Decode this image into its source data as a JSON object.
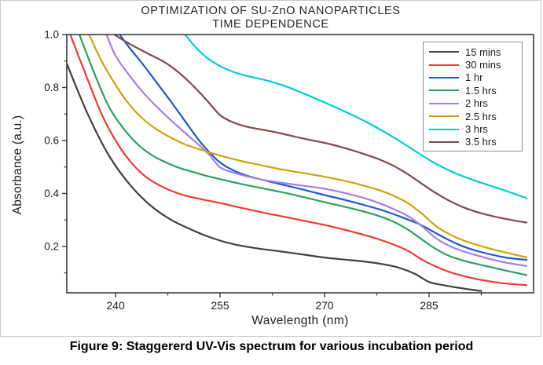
{
  "figure": {
    "title_line1": "OPTIMIZATION OF SU-ZnO NANOPARTICLES",
    "title_line2": "TIME DEPENDENCE",
    "caption": "Figure 9: Staggererd UV-Vis spectrum for various incubation period"
  },
  "chart_data": {
    "type": "line",
    "title": "OPTIMIZATION OF SU-ZnO NANOPARTICLES TIME DEPENDENCE",
    "xlabel": "Wavelength (nm)",
    "ylabel": "Absorbance (a.u.)",
    "xlim": [
      233,
      300
    ],
    "ylim": [
      0.025,
      1.0
    ],
    "grid": false,
    "legend_position": "upper right",
    "x_major_ticks": [
      240,
      255,
      270,
      285
    ],
    "x_minor_ticks": [
      247.5,
      262.5,
      277.5,
      292.5
    ],
    "x_tick_labels": [
      "240",
      "255",
      "270",
      "285"
    ],
    "y_major_ticks": [
      1.0,
      0.8,
      0.6,
      0.4,
      0.2
    ],
    "y_minor_ticks": [
      0.9,
      0.7,
      0.5,
      0.3,
      0.1
    ],
    "y_tick_labels": [
      "1.0",
      "0.8",
      "0.6",
      "0.4",
      "0.2"
    ],
    "frame_color": "#3a3a3a",
    "series": [
      {
        "name": "15 mins",
        "color": "#404040",
        "points": [
          [
            233,
            0.89
          ],
          [
            236,
            0.7
          ],
          [
            239,
            0.545
          ],
          [
            242,
            0.435
          ],
          [
            245,
            0.355
          ],
          [
            248,
            0.3
          ],
          [
            251,
            0.262
          ],
          [
            253,
            0.24
          ],
          [
            255,
            0.222
          ],
          [
            257,
            0.208
          ],
          [
            259,
            0.198
          ],
          [
            261,
            0.19
          ],
          [
            264,
            0.18
          ],
          [
            267,
            0.169
          ],
          [
            270,
            0.158
          ],
          [
            273,
            0.15
          ],
          [
            276,
            0.142
          ],
          [
            279,
            0.13
          ],
          [
            281,
            0.117
          ],
          [
            283,
            0.096
          ],
          [
            285,
            0.066
          ],
          [
            287,
            0.054
          ],
          [
            289,
            0.045
          ],
          [
            291,
            0.037
          ],
          [
            292.5,
            0.032
          ]
        ]
      },
      {
        "name": "30 mins",
        "color": "#ef3b2f",
        "points": [
          [
            233.5,
            1.0
          ],
          [
            236,
            0.83
          ],
          [
            238,
            0.7
          ],
          [
            240,
            0.6
          ],
          [
            242,
            0.525
          ],
          [
            244,
            0.47
          ],
          [
            246,
            0.435
          ],
          [
            248,
            0.41
          ],
          [
            250,
            0.392
          ],
          [
            252.5,
            0.377
          ],
          [
            255,
            0.364
          ],
          [
            258,
            0.346
          ],
          [
            261,
            0.329
          ],
          [
            264,
            0.313
          ],
          [
            267,
            0.297
          ],
          [
            270,
            0.281
          ],
          [
            273,
            0.262
          ],
          [
            276,
            0.241
          ],
          [
            278,
            0.225
          ],
          [
            280,
            0.206
          ],
          [
            282,
            0.183
          ],
          [
            284,
            0.15
          ],
          [
            286,
            0.124
          ],
          [
            288,
            0.103
          ],
          [
            290,
            0.088
          ],
          [
            292,
            0.076
          ],
          [
            294,
            0.067
          ],
          [
            296,
            0.06
          ],
          [
            299,
            0.054
          ]
        ]
      },
      {
        "name": "1 hr",
        "color": "#2057cf",
        "points": [
          [
            240.6,
            1.0
          ],
          [
            242,
            0.95
          ],
          [
            244,
            0.885
          ],
          [
            246,
            0.815
          ],
          [
            248,
            0.745
          ],
          [
            250,
            0.672
          ],
          [
            252,
            0.6
          ],
          [
            253.5,
            0.555
          ],
          [
            255,
            0.517
          ],
          [
            257,
            0.486
          ],
          [
            259,
            0.466
          ],
          [
            261,
            0.452
          ],
          [
            264,
            0.433
          ],
          [
            267,
            0.414
          ],
          [
            270,
            0.394
          ],
          [
            273,
            0.375
          ],
          [
            276,
            0.354
          ],
          [
            278,
            0.339
          ],
          [
            280,
            0.321
          ],
          [
            282,
            0.301
          ],
          [
            284,
            0.279
          ],
          [
            286,
            0.25
          ],
          [
            288,
            0.222
          ],
          [
            290,
            0.199
          ],
          [
            292,
            0.182
          ],
          [
            294,
            0.169
          ],
          [
            296,
            0.158
          ],
          [
            299,
            0.149
          ]
        ]
      },
      {
        "name": "1.5 hrs",
        "color": "#2aa25c",
        "points": [
          [
            234.8,
            1.0
          ],
          [
            237,
            0.85
          ],
          [
            239,
            0.73
          ],
          [
            241,
            0.65
          ],
          [
            243,
            0.59
          ],
          [
            245,
            0.548
          ],
          [
            247,
            0.52
          ],
          [
            249,
            0.498
          ],
          [
            251,
            0.482
          ],
          [
            253,
            0.467
          ],
          [
            255,
            0.454
          ],
          [
            258,
            0.436
          ],
          [
            261,
            0.42
          ],
          [
            264,
            0.404
          ],
          [
            267,
            0.386
          ],
          [
            270,
            0.367
          ],
          [
            273,
            0.349
          ],
          [
            276,
            0.329
          ],
          [
            278,
            0.313
          ],
          [
            280,
            0.292
          ],
          [
            282,
            0.263
          ],
          [
            284,
            0.226
          ],
          [
            286,
            0.19
          ],
          [
            288,
            0.163
          ],
          [
            290,
            0.146
          ],
          [
            292,
            0.133
          ],
          [
            294,
            0.121
          ],
          [
            296,
            0.109
          ],
          [
            299,
            0.092
          ]
        ]
      },
      {
        "name": "2 hrs",
        "color": "#a57ee8",
        "points": [
          [
            238.7,
            1.0
          ],
          [
            240,
            0.92
          ],
          [
            242,
            0.845
          ],
          [
            244,
            0.78
          ],
          [
            246,
            0.725
          ],
          [
            248,
            0.675
          ],
          [
            250,
            0.628
          ],
          [
            252,
            0.582
          ],
          [
            253.5,
            0.545
          ],
          [
            255,
            0.499
          ],
          [
            257,
            0.478
          ],
          [
            259,
            0.464
          ],
          [
            261,
            0.452
          ],
          [
            264,
            0.44
          ],
          [
            267,
            0.429
          ],
          [
            270,
            0.418
          ],
          [
            273,
            0.401
          ],
          [
            276,
            0.38
          ],
          [
            278,
            0.362
          ],
          [
            280,
            0.34
          ],
          [
            282,
            0.314
          ],
          [
            284,
            0.276
          ],
          [
            286,
            0.231
          ],
          [
            288,
            0.201
          ],
          [
            290,
            0.181
          ],
          [
            292,
            0.165
          ],
          [
            294,
            0.151
          ],
          [
            296,
            0.139
          ],
          [
            299,
            0.126
          ]
        ]
      },
      {
        "name": "2.5 hrs",
        "color": "#cfa20a",
        "points": [
          [
            236.2,
            1.0
          ],
          [
            238,
            0.9
          ],
          [
            240,
            0.81
          ],
          [
            242,
            0.735
          ],
          [
            244,
            0.68
          ],
          [
            246,
            0.64
          ],
          [
            248,
            0.61
          ],
          [
            250,
            0.585
          ],
          [
            252,
            0.567
          ],
          [
            255,
            0.543
          ],
          [
            258,
            0.523
          ],
          [
            261,
            0.506
          ],
          [
            264,
            0.49
          ],
          [
            267,
            0.477
          ],
          [
            270,
            0.463
          ],
          [
            273,
            0.447
          ],
          [
            276,
            0.427
          ],
          [
            278,
            0.411
          ],
          [
            280,
            0.39
          ],
          [
            282,
            0.363
          ],
          [
            284,
            0.323
          ],
          [
            286,
            0.277
          ],
          [
            288,
            0.245
          ],
          [
            290,
            0.222
          ],
          [
            292,
            0.205
          ],
          [
            294,
            0.19
          ],
          [
            296,
            0.177
          ],
          [
            299,
            0.159
          ]
        ]
      },
      {
        "name": "3 hrs",
        "color": "#00cdd7",
        "points": [
          [
            250,
            1.0
          ],
          [
            251.5,
            0.952
          ],
          [
            253,
            0.915
          ],
          [
            255,
            0.881
          ],
          [
            257,
            0.858
          ],
          [
            259,
            0.843
          ],
          [
            261,
            0.831
          ],
          [
            263,
            0.817
          ],
          [
            265,
            0.799
          ],
          [
            267,
            0.777
          ],
          [
            269,
            0.755
          ],
          [
            271,
            0.732
          ],
          [
            273,
            0.708
          ],
          [
            275,
            0.683
          ],
          [
            277,
            0.656
          ],
          [
            279,
            0.626
          ],
          [
            281,
            0.594
          ],
          [
            283,
            0.56
          ],
          [
            285,
            0.527
          ],
          [
            287,
            0.498
          ],
          [
            289,
            0.474
          ],
          [
            291,
            0.454
          ],
          [
            293,
            0.436
          ],
          [
            295,
            0.419
          ],
          [
            297,
            0.401
          ],
          [
            299,
            0.382
          ]
        ]
      },
      {
        "name": "3.5 hrs",
        "color": "#7e4a4e",
        "points": [
          [
            239.8,
            1.0
          ],
          [
            242,
            0.965
          ],
          [
            244.5,
            0.93
          ],
          [
            247,
            0.896
          ],
          [
            249,
            0.858
          ],
          [
            251,
            0.81
          ],
          [
            253,
            0.755
          ],
          [
            255,
            0.696
          ],
          [
            257,
            0.667
          ],
          [
            259,
            0.651
          ],
          [
            261,
            0.641
          ],
          [
            263,
            0.631
          ],
          [
            265,
            0.619
          ],
          [
            267,
            0.607
          ],
          [
            270,
            0.591
          ],
          [
            272,
            0.578
          ],
          [
            274,
            0.563
          ],
          [
            276,
            0.546
          ],
          [
            278,
            0.527
          ],
          [
            280,
            0.503
          ],
          [
            282,
            0.472
          ],
          [
            284,
            0.436
          ],
          [
            286,
            0.401
          ],
          [
            288,
            0.371
          ],
          [
            290,
            0.347
          ],
          [
            292,
            0.329
          ],
          [
            294,
            0.315
          ],
          [
            296,
            0.304
          ],
          [
            299,
            0.29
          ]
        ]
      }
    ]
  }
}
